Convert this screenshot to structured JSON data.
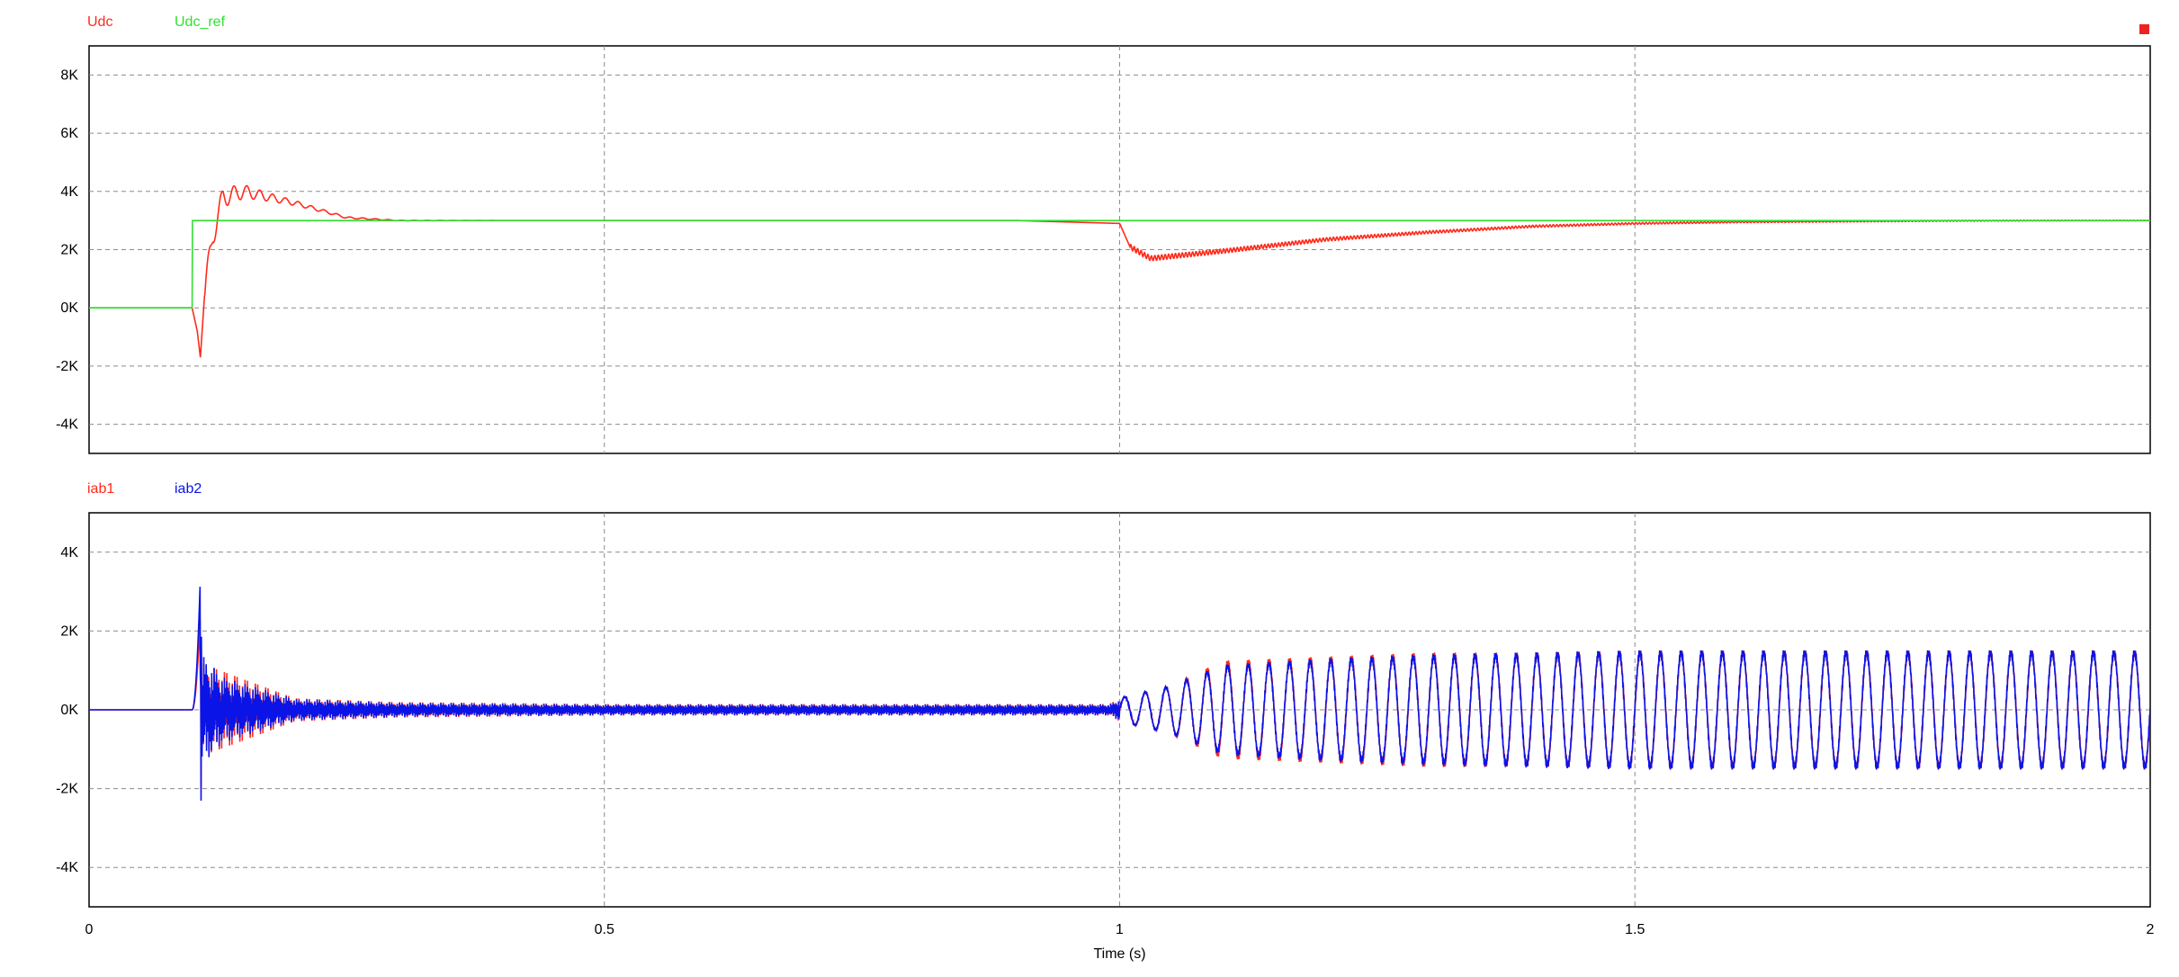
{
  "chart_data": [
    {
      "type": "line",
      "title": "",
      "xlabel": "",
      "ylabel": "",
      "xlim": [
        0,
        2
      ],
      "ylim": [
        -5000,
        9000
      ],
      "grid": true,
      "legend_position": "top-left",
      "y_ticks": [
        {
          "value": 8000,
          "label": "8K"
        },
        {
          "value": 6000,
          "label": "6K"
        },
        {
          "value": 4000,
          "label": "4K"
        },
        {
          "value": 2000,
          "label": "2K"
        },
        {
          "value": 0,
          "label": "0K"
        },
        {
          "value": -2000,
          "label": "-2K"
        },
        {
          "value": -4000,
          "label": "-4K"
        }
      ],
      "series": [
        {
          "name": "Udc",
          "color": "#ff2a1a",
          "x": [
            0,
            0.1,
            0.105,
            0.108,
            0.112,
            0.12,
            0.13,
            0.15,
            0.2,
            0.25,
            0.3,
            0.4,
            0.5,
            0.9,
            1.0,
            1.01,
            1.03,
            1.1,
            1.2,
            1.3,
            1.4,
            1.5,
            1.6,
            1.7,
            1.8,
            1.9,
            2.0
          ],
          "y": [
            0,
            0,
            -800,
            -1700,
            400,
            2500,
            3800,
            4000,
            3600,
            3100,
            3000,
            3000,
            3000,
            3000,
            2900,
            2100,
            1700,
            1950,
            2350,
            2600,
            2800,
            2900,
            2950,
            2970,
            2990,
            3000,
            3000
          ]
        },
        {
          "name": "Udc_ref",
          "color": "#33dd33",
          "x": [
            0,
            0.1,
            0.1,
            2.0
          ],
          "y": [
            0,
            0,
            3000,
            3000
          ]
        }
      ]
    },
    {
      "type": "line",
      "title": "",
      "xlabel": "Time (s)",
      "ylabel": "",
      "xlim": [
        0,
        2
      ],
      "ylim": [
        -5000,
        5000
      ],
      "grid": true,
      "legend_position": "top-left",
      "y_ticks": [
        {
          "value": 4000,
          "label": "4K"
        },
        {
          "value": 2000,
          "label": "2K"
        },
        {
          "value": 0,
          "label": "0K"
        },
        {
          "value": -2000,
          "label": "-2K"
        },
        {
          "value": -4000,
          "label": "-4K"
        }
      ],
      "x_ticks": [
        {
          "value": 0,
          "label": "0"
        },
        {
          "value": 0.5,
          "label": "0.5"
        },
        {
          "value": 1,
          "label": "1"
        },
        {
          "value": 1.5,
          "label": "1.5"
        },
        {
          "value": 2,
          "label": "2"
        }
      ],
      "series": [
        {
          "name": "iab1",
          "color": "#ff2a1a",
          "x": [
            0,
            0.1,
            0.108,
            0.11,
            0.13,
            0.2,
            0.3,
            0.5,
            0.9,
            0.99,
            1.0,
            1.05,
            1.1,
            1.2,
            1.3,
            1.4,
            1.5,
            1.6,
            1.7,
            1.8,
            1.9,
            2.0
          ],
          "y": [
            0,
            0,
            2500,
            1200,
            1000,
            300,
            200,
            150,
            150,
            150,
            300,
            600,
            1200,
            1300,
            1400,
            1400,
            1450,
            1450,
            1450,
            1450,
            1450,
            1450
          ]
        },
        {
          "name": "iab2",
          "color": "#0a14e6",
          "x": [
            0,
            0.1,
            0.108,
            0.11,
            0.13,
            0.2,
            0.3,
            0.5,
            0.9,
            0.99,
            1.0,
            1.05,
            1.1,
            1.2,
            1.3,
            1.4,
            1.5,
            1.6,
            1.7,
            1.8,
            1.9,
            2.0
          ],
          "y": [
            0,
            0,
            3400,
            1500,
            900,
            300,
            200,
            150,
            150,
            150,
            300,
            600,
            1100,
            1250,
            1350,
            1400,
            1450,
            1450,
            1450,
            1450,
            1450,
            1450
          ]
        }
      ]
    }
  ]
}
